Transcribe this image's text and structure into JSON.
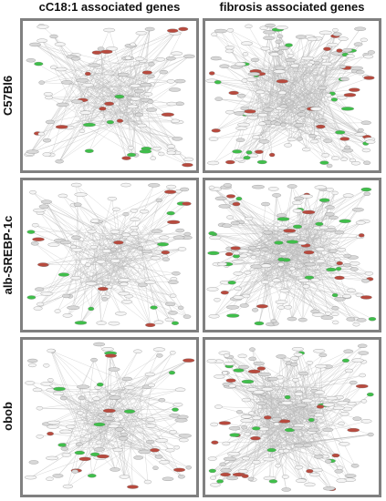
{
  "columns": [
    "cC18:1 associated genes",
    "fibrosis associated genes"
  ],
  "rows": [
    "C57Bl6",
    "alb-SREBP-1c",
    "obob"
  ]
}
